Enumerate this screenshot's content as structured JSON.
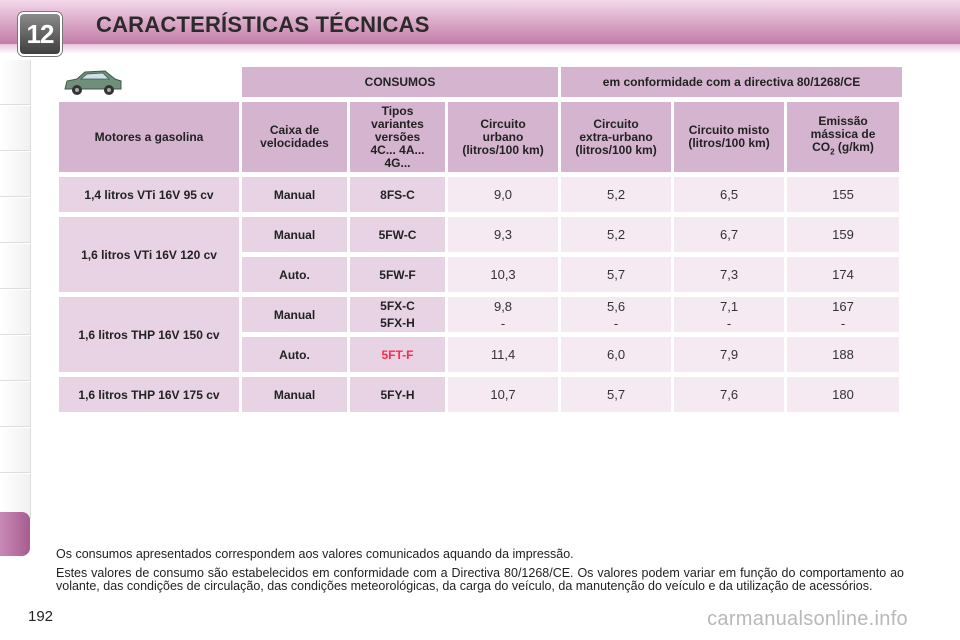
{
  "header": {
    "chapter": "12",
    "title": "CARACTERÍSTICAS TÉCNICAS"
  },
  "table": {
    "top": [
      "CONSUMOS",
      "em conformidade com a directiva 80/1268/CE"
    ],
    "columns": {
      "motor": "Motores a gasolina",
      "caixa": "Caixa de velocidades",
      "tipos": [
        "Tipos",
        "variantes",
        "versões",
        "4C... 4A...",
        "4G..."
      ],
      "urbano": [
        "Circuito",
        "urbano",
        "(litros/100 km)"
      ],
      "extra": [
        "Circuito",
        "extra-urbano",
        "(litros/100 km)"
      ],
      "misto": [
        "Circuito misto",
        "(litros/100 km)"
      ],
      "emissao": [
        "Emissão",
        "mássica de",
        "CO",
        "2",
        " (g/km)"
      ]
    },
    "rows": [
      {
        "motor": "1,4 litros VTi 16V 95 cv",
        "caixa": "Manual",
        "tipo": "8FS-C",
        "urbano": "9,0",
        "extra": "5,2",
        "misto": "6,5",
        "co2": "155"
      },
      {
        "motor": "1,6 litros VTi 16V 120 cv",
        "caixa": "Manual",
        "tipo": "5FW-C",
        "urbano": "9,3",
        "extra": "5,2",
        "misto": "6,7",
        "co2": "159"
      },
      {
        "caixa": "Auto.",
        "tipo": "5FW-F",
        "urbano": "10,3",
        "extra": "5,7",
        "misto": "7,3",
        "co2": "174"
      },
      {
        "motor": "1,6 litros THP 16V 150 cv",
        "caixa": "Manual",
        "tipo1": "5FX-C",
        "tipo2": "5FX-H",
        "urbano1": "9,8",
        "urbano2": "-",
        "extra1": "5,6",
        "extra2": "-",
        "misto1": "7,1",
        "misto2": "-",
        "co21": "167",
        "co22": "-"
      },
      {
        "caixa": "Auto.",
        "tipo": "5FT-F",
        "urbano": "11,4",
        "extra": "6,0",
        "misto": "7,9",
        "co2": "188"
      },
      {
        "motor": "1,6 litros THP 16V 175 cv",
        "caixa": "Manual",
        "tipo": "5FY-H",
        "urbano": "10,7",
        "extra": "5,7",
        "misto": "7,6",
        "co2": "180"
      }
    ]
  },
  "notes": [
    "Os consumos apresentados correspondem aos valores comunicados aquando da impressão.",
    "Estes valores de consumo são estabelecidos em conformidade com a Directiva 80/1268/CE. Os valores podem variar em função do comportamento ao volante, das condições de circulação, das condições meteorológicas, da carga do veículo, da manutenção do veículo e da utilização de acessórios."
  ],
  "page_number": "192",
  "watermark": "carmanualsonline.info",
  "colors": {
    "header_accent": "#b86e9c",
    "cell_header": "#d4b4cf",
    "cell_label": "#e7d3e4",
    "cell_value": "#f5e9f2",
    "highlight_text": "#ff2a4a"
  },
  "icons": {
    "car": "car-icon",
    "chapter": "chapter-badge"
  }
}
